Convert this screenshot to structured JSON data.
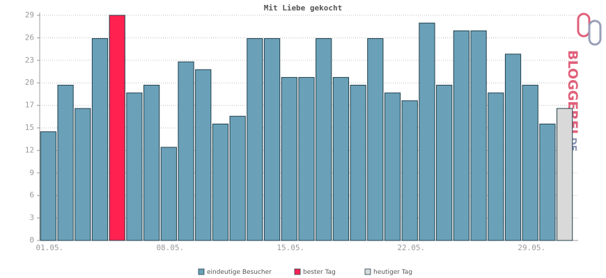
{
  "chart_data": {
    "type": "bar",
    "title": "Mit Liebe gekocht",
    "categories": [
      "01.05.",
      null,
      null,
      null,
      null,
      null,
      null,
      "08.05.",
      null,
      null,
      null,
      null,
      null,
      null,
      "15.05.",
      null,
      null,
      null,
      null,
      null,
      null,
      "22.05.",
      null,
      null,
      null,
      null,
      null,
      null,
      "29.05.",
      null,
      null
    ],
    "values": [
      14,
      20,
      17,
      26,
      29,
      19,
      20,
      12,
      23,
      22,
      15,
      16,
      26,
      26,
      21,
      21,
      26,
      21,
      20,
      26,
      19,
      18,
      28,
      20,
      27,
      27,
      19,
      24,
      20,
      15,
      17
    ],
    "colors": [
      "#6aa1b8",
      "#6aa1b8",
      "#6aa1b8",
      "#6aa1b8",
      "#ff2150",
      "#6aa1b8",
      "#6aa1b8",
      "#6aa1b8",
      "#6aa1b8",
      "#6aa1b8",
      "#6aa1b8",
      "#6aa1b8",
      "#6aa1b8",
      "#6aa1b8",
      "#6aa1b8",
      "#6aa1b8",
      "#6aa1b8",
      "#6aa1b8",
      "#6aa1b8",
      "#6aa1b8",
      "#6aa1b8",
      "#6aa1b8",
      "#6aa1b8",
      "#6aa1b8",
      "#6aa1b8",
      "#6aa1b8",
      "#6aa1b8",
      "#6aa1b8",
      "#6aa1b8",
      "#6aa1b8",
      "#d9d9d9"
    ],
    "legend": [
      {
        "name": "eindeutige Besucher",
        "color": "#6aa1b8"
      },
      {
        "name": "bester Tag",
        "color": "#ff2150"
      },
      {
        "name": "heutiger Tag",
        "color": "#d9d9d9"
      }
    ],
    "ylim": [
      0,
      29
    ],
    "yticks": [
      0,
      {
        "value": 2.9,
        "label": "3"
      },
      {
        "value": 5.8,
        "label": "6"
      },
      {
        "value": 8.7,
        "label": "9"
      },
      {
        "value": 11.6,
        "label": "12"
      },
      {
        "value": 14.5,
        "label": "15"
      },
      {
        "value": 17.4,
        "label": "17"
      },
      {
        "value": 20.3,
        "label": "20"
      },
      {
        "value": 23.2,
        "label": "23"
      },
      {
        "value": 26.1,
        "label": "26"
      },
      29
    ],
    "grid": true
  },
  "logo": {
    "main": "BLOGGEREI",
    "suffix": ".DE"
  }
}
